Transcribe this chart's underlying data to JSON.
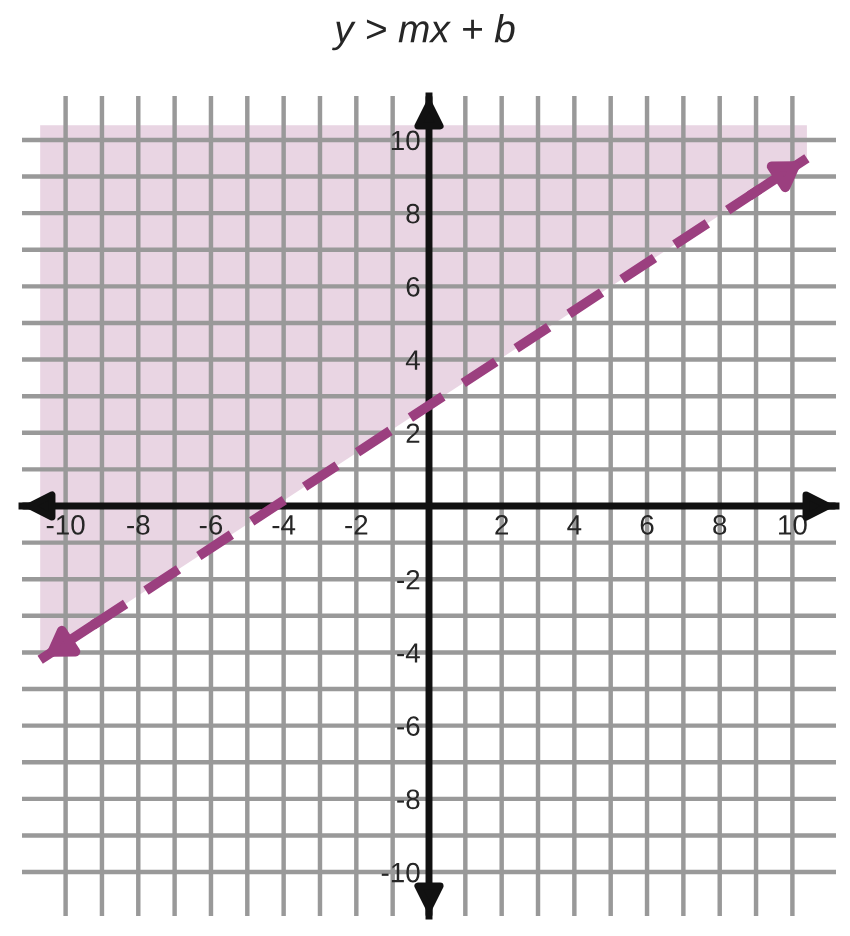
{
  "chart_data": {
    "type": "line",
    "title": "y > mx + b",
    "xlim": [
      -11.2,
      11.2
    ],
    "ylim": [
      -11.2,
      11.2
    ],
    "xticks": [
      {
        "value": -10,
        "label": "-10"
      },
      {
        "value": -9,
        "label": null
      },
      {
        "value": -8,
        "label": "-8"
      },
      {
        "value": -7,
        "label": null
      },
      {
        "value": -6,
        "label": "-6"
      },
      {
        "value": -5,
        "label": null
      },
      {
        "value": -4,
        "label": "-4"
      },
      {
        "value": -3,
        "label": null
      },
      {
        "value": -2,
        "label": "-2"
      },
      {
        "value": -1,
        "label": null
      },
      {
        "value": 0,
        "label": null
      },
      {
        "value": 1,
        "label": null
      },
      {
        "value": 2,
        "label": "2"
      },
      {
        "value": 3,
        "label": null
      },
      {
        "value": 4,
        "label": "4"
      },
      {
        "value": 5,
        "label": null
      },
      {
        "value": 6,
        "label": "6"
      },
      {
        "value": 7,
        "label": null
      },
      {
        "value": 8,
        "label": "8"
      },
      {
        "value": 9,
        "label": null
      },
      {
        "value": 10,
        "label": "10"
      }
    ],
    "yticks": [
      {
        "value": -10,
        "label": "-10"
      },
      {
        "value": -9,
        "label": null
      },
      {
        "value": -8,
        "label": "-8"
      },
      {
        "value": -7,
        "label": null
      },
      {
        "value": -6,
        "label": "-6"
      },
      {
        "value": -5,
        "label": null
      },
      {
        "value": -4,
        "label": "-4"
      },
      {
        "value": -3,
        "label": null
      },
      {
        "value": -2,
        "label": "-2"
      },
      {
        "value": -1,
        "label": null
      },
      {
        "value": 0,
        "label": null
      },
      {
        "value": 1,
        "label": null
      },
      {
        "value": 2,
        "label": "2"
      },
      {
        "value": 3,
        "label": null
      },
      {
        "value": 4,
        "label": "4"
      },
      {
        "value": 5,
        "label": null
      },
      {
        "value": 6,
        "label": "6"
      },
      {
        "value": 7,
        "label": null
      },
      {
        "value": 8,
        "label": "8"
      },
      {
        "value": 9,
        "label": null
      },
      {
        "value": 10,
        "label": "10"
      }
    ],
    "grid": true,
    "line_style": "dashed",
    "marker": "none",
    "series": [
      {
        "color": "#9b3f7f",
        "x": [
          -10.7,
          10.4
        ],
        "values": [
          -4.2,
          9.5
        ],
        "lower": [
          -4.2,
          9.5
        ],
        "upper": [
          10.4,
          10.4
        ]
      }
    ]
  }
}
